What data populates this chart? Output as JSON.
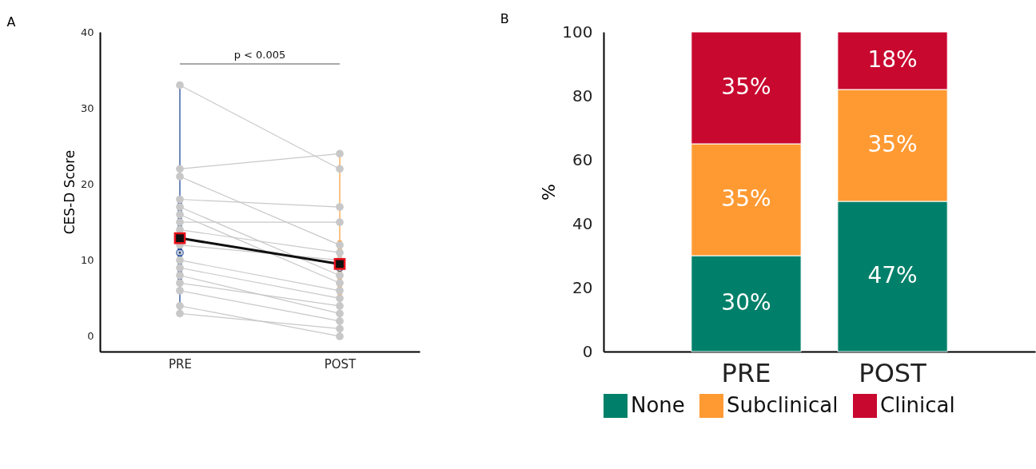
{
  "chart_data": [
    {
      "type": "box",
      "title": "A",
      "ylabel": "CES-D Score",
      "categories": [
        "PRE",
        "POST"
      ],
      "ylim": [
        -2,
        40
      ],
      "yticks": [
        0,
        10,
        20,
        30,
        40
      ],
      "grid": false,
      "annotations": [
        "p < 0.005"
      ],
      "series": [
        {
          "type": "box",
          "colors": [
            "#0d3b8e",
            "#ff9a33"
          ],
          "boxes": [
            {
              "low": 3,
              "q1": 7,
              "median": 11,
              "q3": 18,
              "high": 33
            },
            {
              "low": 0,
              "q1": 4.6,
              "median": 9,
              "q3": 12.6,
              "high": 24
            }
          ]
        },
        {
          "type": "line",
          "color": "#c8c8c8",
          "marker": "circle",
          "values": [
            33,
            22
          ]
        },
        {
          "type": "line",
          "color": "#c8c8c8",
          "marker": "circle",
          "values": [
            22,
            24
          ]
        },
        {
          "type": "line",
          "color": "#c8c8c8",
          "marker": "circle",
          "values": [
            21,
            12
          ]
        },
        {
          "type": "line",
          "color": "#c8c8c8",
          "marker": "circle",
          "values": [
            18,
            17
          ]
        },
        {
          "type": "line",
          "color": "#c8c8c8",
          "marker": "circle",
          "values": [
            17,
            8
          ]
        },
        {
          "type": "line",
          "color": "#c8c8c8",
          "marker": "circle",
          "values": [
            16,
            7
          ]
        },
        {
          "type": "line",
          "color": "#c8c8c8",
          "marker": "circle",
          "values": [
            15,
            15
          ]
        },
        {
          "type": "line",
          "color": "#c8c8c8",
          "marker": "circle",
          "values": [
            14,
            11
          ]
        },
        {
          "type": "line",
          "color": "#c8c8c8",
          "marker": "circle",
          "values": [
            12,
            10
          ]
        },
        {
          "type": "line",
          "color": "#c8c8c8",
          "marker": "circle",
          "values": [
            10,
            6
          ]
        },
        {
          "type": "line",
          "color": "#c8c8c8",
          "marker": "circle",
          "values": [
            9,
            5
          ]
        },
        {
          "type": "line",
          "color": "#c8c8c8",
          "marker": "circle",
          "values": [
            8,
            3
          ]
        },
        {
          "type": "line",
          "color": "#c8c8c8",
          "marker": "circle",
          "values": [
            7,
            4
          ]
        },
        {
          "type": "line",
          "color": "#c8c8c8",
          "marker": "circle",
          "values": [
            6,
            2
          ]
        },
        {
          "type": "line",
          "color": "#c8c8c8",
          "marker": "circle",
          "values": [
            4,
            0
          ]
        },
        {
          "type": "line",
          "color": "#c8c8c8",
          "marker": "circle",
          "values": [
            3,
            1
          ]
        },
        {
          "type": "line",
          "color": "#101010",
          "marker": "square",
          "values": [
            12.9,
            9.5
          ]
        }
      ]
    },
    {
      "type": "bar",
      "title": "B",
      "ylabel": "%",
      "categories": [
        "PRE",
        "POST"
      ],
      "stacked": true,
      "ylim": [
        0,
        100
      ],
      "yticks": [
        0,
        20,
        40,
        60,
        80,
        100
      ],
      "grid": false,
      "legend": "bottom",
      "series": [
        {
          "name": "None",
          "color": "#00806a",
          "values": [
            30,
            47
          ],
          "value_labels": [
            "30%",
            "47%"
          ]
        },
        {
          "name": "Subclinical",
          "color": "#ff9a33",
          "values": [
            35,
            35
          ],
          "value_labels": [
            "35%",
            "35%"
          ]
        },
        {
          "name": "Clinical",
          "color": "#c8082f",
          "values": [
            35,
            18
          ],
          "value_labels": [
            "35%",
            "18%"
          ]
        }
      ]
    }
  ]
}
